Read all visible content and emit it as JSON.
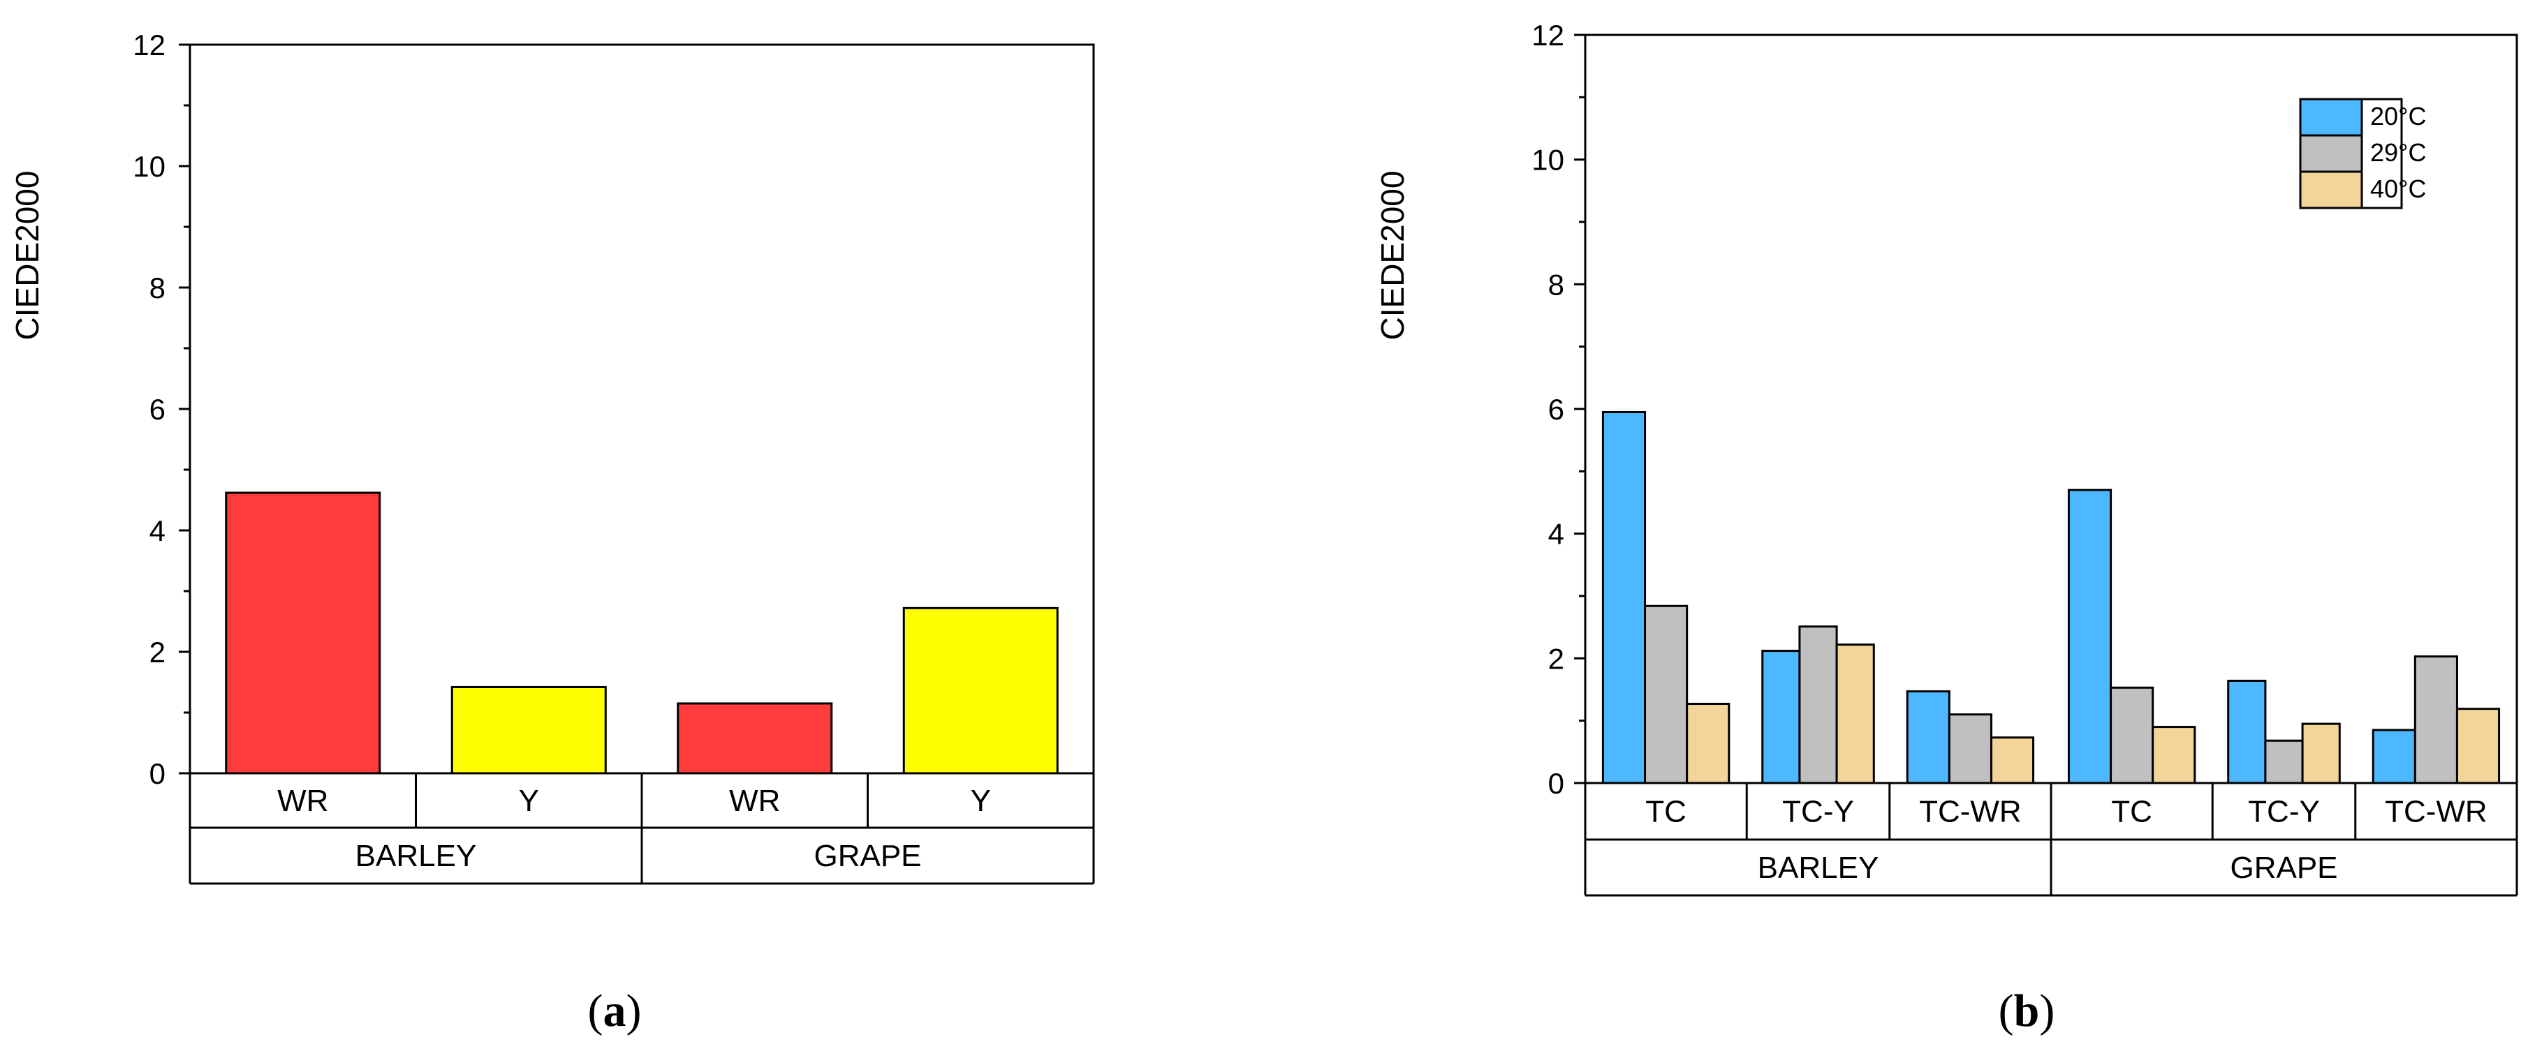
{
  "chart_data": [
    {
      "type": "bar",
      "ylabel": "CIEDE2000",
      "ylim": [
        0,
        12
      ],
      "yticks": [
        0,
        2,
        4,
        6,
        8,
        10,
        12
      ],
      "group_labels": [
        "BARLEY",
        "GRAPE"
      ],
      "subgroup_labels": [
        [
          "WR",
          "Y"
        ],
        [
          "WR",
          "Y"
        ]
      ],
      "series": [
        {
          "values": [
            [
              4.62,
              1.42
            ],
            [
              1.15,
              2.72
            ]
          ]
        }
      ],
      "bar_colors": [
        [
          "#ff3b3b",
          "#ffff00"
        ],
        [
          "#ff3b3b",
          "#ffff00"
        ]
      ],
      "panel_label": "(a)",
      "grid": false
    },
    {
      "type": "bar",
      "ylabel": "CIEDE2000",
      "ylim": [
        0,
        12
      ],
      "yticks": [
        0,
        2,
        4,
        6,
        8,
        10,
        12
      ],
      "group_labels": [
        "BARLEY",
        "GRAPE"
      ],
      "subgroup_labels": [
        [
          "TC",
          "TC-Y",
          "TC-WR"
        ],
        [
          "TC",
          "TC-Y",
          "TC-WR"
        ]
      ],
      "series": [
        {
          "name": "20°C",
          "color": "#4db8ff",
          "values": [
            [
              5.95,
              2.12,
              1.47
            ],
            [
              4.7,
              1.64,
              0.85
            ]
          ]
        },
        {
          "name": "29°C",
          "color": "#c0c0c0",
          "values": [
            [
              2.84,
              2.51,
              1.1
            ],
            [
              1.53,
              0.68,
              2.03
            ]
          ]
        },
        {
          "name": "40°C",
          "color": "#f3d59a",
          "values": [
            [
              1.27,
              2.22,
              0.73
            ],
            [
              0.9,
              0.95,
              1.19
            ]
          ]
        }
      ],
      "legend_position": "top-right",
      "panel_label": "(b)",
      "grid": false
    }
  ]
}
